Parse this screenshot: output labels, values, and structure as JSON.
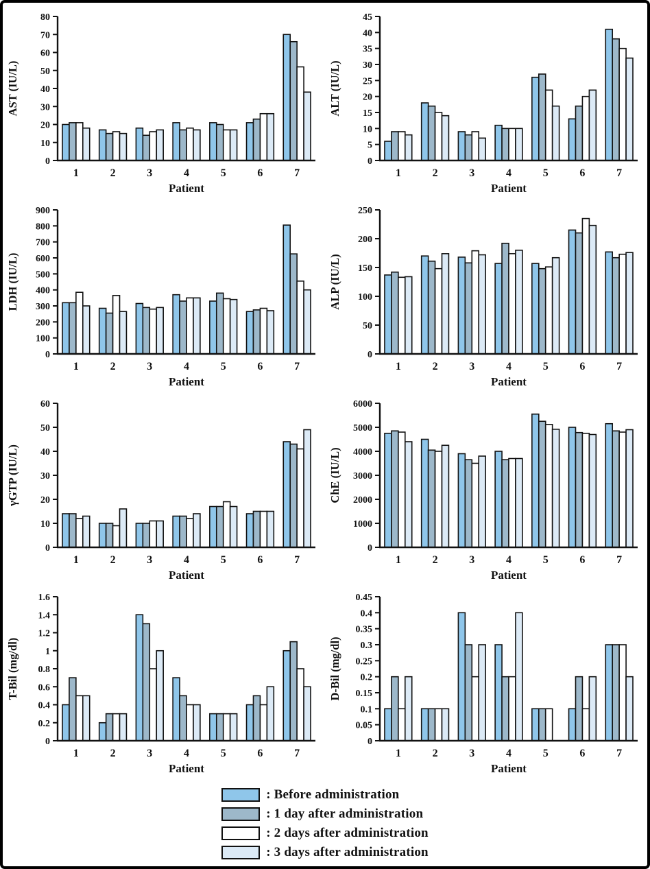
{
  "figure": {
    "xlabel": "Patient",
    "categories": [
      "1",
      "2",
      "3",
      "4",
      "5",
      "6",
      "7"
    ],
    "series_names": [
      "Before administration",
      "1 day after administration",
      "2 days after administration",
      "3 days after administration"
    ],
    "series_colors": [
      "#8FC6EA",
      "#9DB8CA",
      "#FFFFFF",
      "#DCEAF6"
    ],
    "axis_color": "#111111",
    "border_color": "#000000"
  },
  "chart_data": [
    {
      "type": "bar",
      "key": "ast",
      "ylabel": "AST (IU/L)",
      "xlabel": "Patient",
      "ylim": [
        0,
        80
      ],
      "yticks": [
        0,
        10,
        20,
        30,
        40,
        50,
        60,
        70,
        80
      ],
      "ytick_labels": [
        "0",
        "10",
        "20",
        "30",
        "40",
        "50",
        "60",
        "70",
        "80"
      ],
      "categories": [
        "1",
        "2",
        "3",
        "4",
        "5",
        "6",
        "7"
      ],
      "series": [
        {
          "name": "Before administration",
          "values": [
            20,
            17,
            18,
            21,
            21,
            21,
            70
          ]
        },
        {
          "name": "1 day after administration",
          "values": [
            21,
            15,
            14,
            17,
            20,
            23,
            66
          ]
        },
        {
          "name": "2 days after administration",
          "values": [
            21,
            16,
            16,
            18,
            17,
            26,
            52
          ]
        },
        {
          "name": "3 days after administration",
          "values": [
            18,
            15,
            17,
            17,
            17,
            26,
            38
          ]
        }
      ]
    },
    {
      "type": "bar",
      "key": "alt",
      "ylabel": "ALT (IU/L)",
      "xlabel": "Patient",
      "ylim": [
        0,
        45
      ],
      "yticks": [
        0,
        5,
        10,
        15,
        20,
        25,
        30,
        35,
        40,
        45
      ],
      "ytick_labels": [
        "0",
        "5",
        "10",
        "15",
        "20",
        "25",
        "30",
        "35",
        "40",
        "45"
      ],
      "categories": [
        "1",
        "2",
        "3",
        "4",
        "5",
        "6",
        "7"
      ],
      "series": [
        {
          "name": "Before administration",
          "values": [
            6,
            18,
            9,
            11,
            26,
            13,
            41
          ]
        },
        {
          "name": "1 day after administration",
          "values": [
            9,
            17,
            8,
            10,
            27,
            17,
            38
          ]
        },
        {
          "name": "2 days after administration",
          "values": [
            9,
            15,
            9,
            10,
            22,
            20,
            35
          ]
        },
        {
          "name": "3 days after administration",
          "values": [
            8,
            14,
            7,
            10,
            17,
            22,
            32
          ]
        }
      ]
    },
    {
      "type": "bar",
      "key": "ldh",
      "ylabel": "LDH (IU/L)",
      "xlabel": "Patient",
      "ylim": [
        0,
        900
      ],
      "yticks": [
        0,
        100,
        200,
        300,
        400,
        500,
        600,
        700,
        800,
        900
      ],
      "ytick_labels": [
        "0",
        "100",
        "200",
        "300",
        "400",
        "500",
        "600",
        "700",
        "800",
        "900"
      ],
      "categories": [
        "1",
        "2",
        "3",
        "4",
        "5",
        "6",
        "7"
      ],
      "series": [
        {
          "name": "Before administration",
          "values": [
            320,
            285,
            315,
            370,
            330,
            265,
            805
          ]
        },
        {
          "name": "1 day after administration",
          "values": [
            320,
            255,
            290,
            330,
            380,
            275,
            625
          ]
        },
        {
          "name": "2 days after administration",
          "values": [
            385,
            365,
            280,
            350,
            345,
            285,
            455
          ]
        },
        {
          "name": "3 days after administration",
          "values": [
            300,
            265,
            290,
            350,
            340,
            270,
            400
          ]
        }
      ]
    },
    {
      "type": "bar",
      "key": "alp",
      "ylabel": "ALP (IU/L)",
      "xlabel": "Patient",
      "ylim": [
        0,
        250
      ],
      "yticks": [
        0,
        50,
        100,
        150,
        200,
        250
      ],
      "ytick_labels": [
        "0",
        "50",
        "100",
        "150",
        "200",
        "250"
      ],
      "categories": [
        "1",
        "2",
        "3",
        "4",
        "5",
        "6",
        "7"
      ],
      "series": [
        {
          "name": "Before administration",
          "values": [
            137,
            170,
            168,
            157,
            157,
            215,
            177
          ]
        },
        {
          "name": "1 day after administration",
          "values": [
            142,
            161,
            158,
            192,
            148,
            210,
            167
          ]
        },
        {
          "name": "2 days after administration",
          "values": [
            133,
            148,
            179,
            174,
            151,
            235,
            173
          ]
        },
        {
          "name": "3 days after administration",
          "values": [
            134,
            174,
            172,
            180,
            167,
            223,
            176
          ]
        }
      ]
    },
    {
      "type": "bar",
      "key": "ggtp",
      "ylabel": "γGTP (IU/L)",
      "xlabel": "Patient",
      "ylim": [
        0,
        60
      ],
      "yticks": [
        0,
        10,
        20,
        30,
        40,
        50,
        60
      ],
      "ytick_labels": [
        "0",
        "10",
        "20",
        "30",
        "40",
        "50",
        "60"
      ],
      "categories": [
        "1",
        "2",
        "3",
        "4",
        "5",
        "6",
        "7"
      ],
      "series": [
        {
          "name": "Before administration",
          "values": [
            14,
            10,
            10,
            13,
            17,
            14,
            44
          ]
        },
        {
          "name": "1 day after administration",
          "values": [
            14,
            10,
            10,
            13,
            17,
            15,
            43
          ]
        },
        {
          "name": "2 days after administration",
          "values": [
            12,
            9,
            11,
            12,
            19,
            15,
            41
          ]
        },
        {
          "name": "3 days after administration",
          "values": [
            13,
            16,
            11,
            14,
            17,
            15,
            49
          ]
        }
      ]
    },
    {
      "type": "bar",
      "key": "che",
      "ylabel": "ChE (IU/L)",
      "xlabel": "Patient",
      "ylim": [
        0,
        6000
      ],
      "yticks": [
        0,
        1000,
        2000,
        3000,
        4000,
        5000,
        6000
      ],
      "ytick_labels": [
        "0",
        "1000",
        "2000",
        "3000",
        "4000",
        "5000",
        "6000"
      ],
      "categories": [
        "1",
        "2",
        "3",
        "4",
        "5",
        "6",
        "7"
      ],
      "series": [
        {
          "name": "Before administration",
          "values": [
            4750,
            4500,
            3900,
            4000,
            5550,
            5000,
            5150
          ]
        },
        {
          "name": "1 day after administration",
          "values": [
            4850,
            4050,
            3650,
            3650,
            5250,
            4780,
            4850
          ]
        },
        {
          "name": "2 days after administration",
          "values": [
            4800,
            4000,
            3500,
            3700,
            5120,
            4750,
            4800
          ]
        },
        {
          "name": "3 days after administration",
          "values": [
            4400,
            4250,
            3800,
            3700,
            4920,
            4700,
            4900
          ]
        }
      ]
    },
    {
      "type": "bar",
      "key": "tbil",
      "ylabel": "T-Bil (mg/dl)",
      "xlabel": "Patient",
      "ylim": [
        0,
        1.6
      ],
      "yticks": [
        0,
        0.2,
        0.4,
        0.6,
        0.8,
        1.0,
        1.2,
        1.4,
        1.6
      ],
      "ytick_labels": [
        "0",
        "0.2",
        "0.4",
        "0.6",
        "0.8",
        "1",
        "1.2",
        "1.4",
        "1.6"
      ],
      "categories": [
        "1",
        "2",
        "3",
        "4",
        "5",
        "6",
        "7"
      ],
      "series": [
        {
          "name": "Before administration",
          "values": [
            0.4,
            0.2,
            1.4,
            0.7,
            0.3,
            0.4,
            1.0
          ]
        },
        {
          "name": "1 day after administration",
          "values": [
            0.7,
            0.3,
            1.3,
            0.5,
            0.3,
            0.5,
            1.1
          ]
        },
        {
          "name": "2 days after administration",
          "values": [
            0.5,
            0.3,
            0.8,
            0.4,
            0.3,
            0.4,
            0.8
          ]
        },
        {
          "name": "3 days after administration",
          "values": [
            0.5,
            0.3,
            1.0,
            0.4,
            0.3,
            0.6,
            0.6
          ]
        }
      ]
    },
    {
      "type": "bar",
      "key": "dbil",
      "ylabel": "D-Bil (mg/dl)",
      "xlabel": "Patient",
      "ylim": [
        0,
        0.45
      ],
      "yticks": [
        0,
        0.05,
        0.1,
        0.15,
        0.2,
        0.25,
        0.3,
        0.35,
        0.4,
        0.45
      ],
      "ytick_labels": [
        "0",
        "0.05",
        "0.1",
        "0.15",
        "0.2",
        "0.25",
        "0.3",
        "0.35",
        "0.4",
        "0.45"
      ],
      "categories": [
        "1",
        "2",
        "3",
        "4",
        "5",
        "6",
        "7"
      ],
      "series": [
        {
          "name": "Before administration",
          "values": [
            0.1,
            0.1,
            0.4,
            0.3,
            0.1,
            0.1,
            0.3
          ]
        },
        {
          "name": "1 day after administration",
          "values": [
            0.2,
            0.1,
            0.3,
            0.2,
            0.1,
            0.2,
            0.3
          ]
        },
        {
          "name": "2 days after administration",
          "values": [
            0.1,
            0.1,
            0.2,
            0.2,
            0.1,
            0.1,
            0.3
          ]
        },
        {
          "name": "3 days after administration",
          "values": [
            0.2,
            0.1,
            0.3,
            0.4,
            0,
            0.2,
            0.2
          ]
        }
      ]
    }
  ],
  "legend": {
    "items": [
      {
        "label": ": Before administration",
        "color": "#8FC6EA"
      },
      {
        "label": ": 1 day after administration",
        "color": "#9DB8CA"
      },
      {
        "label": ": 2 days after administration",
        "color": "#FFFFFF"
      },
      {
        "label": ": 3 days after administration",
        "color": "#DCEAF6"
      }
    ]
  }
}
